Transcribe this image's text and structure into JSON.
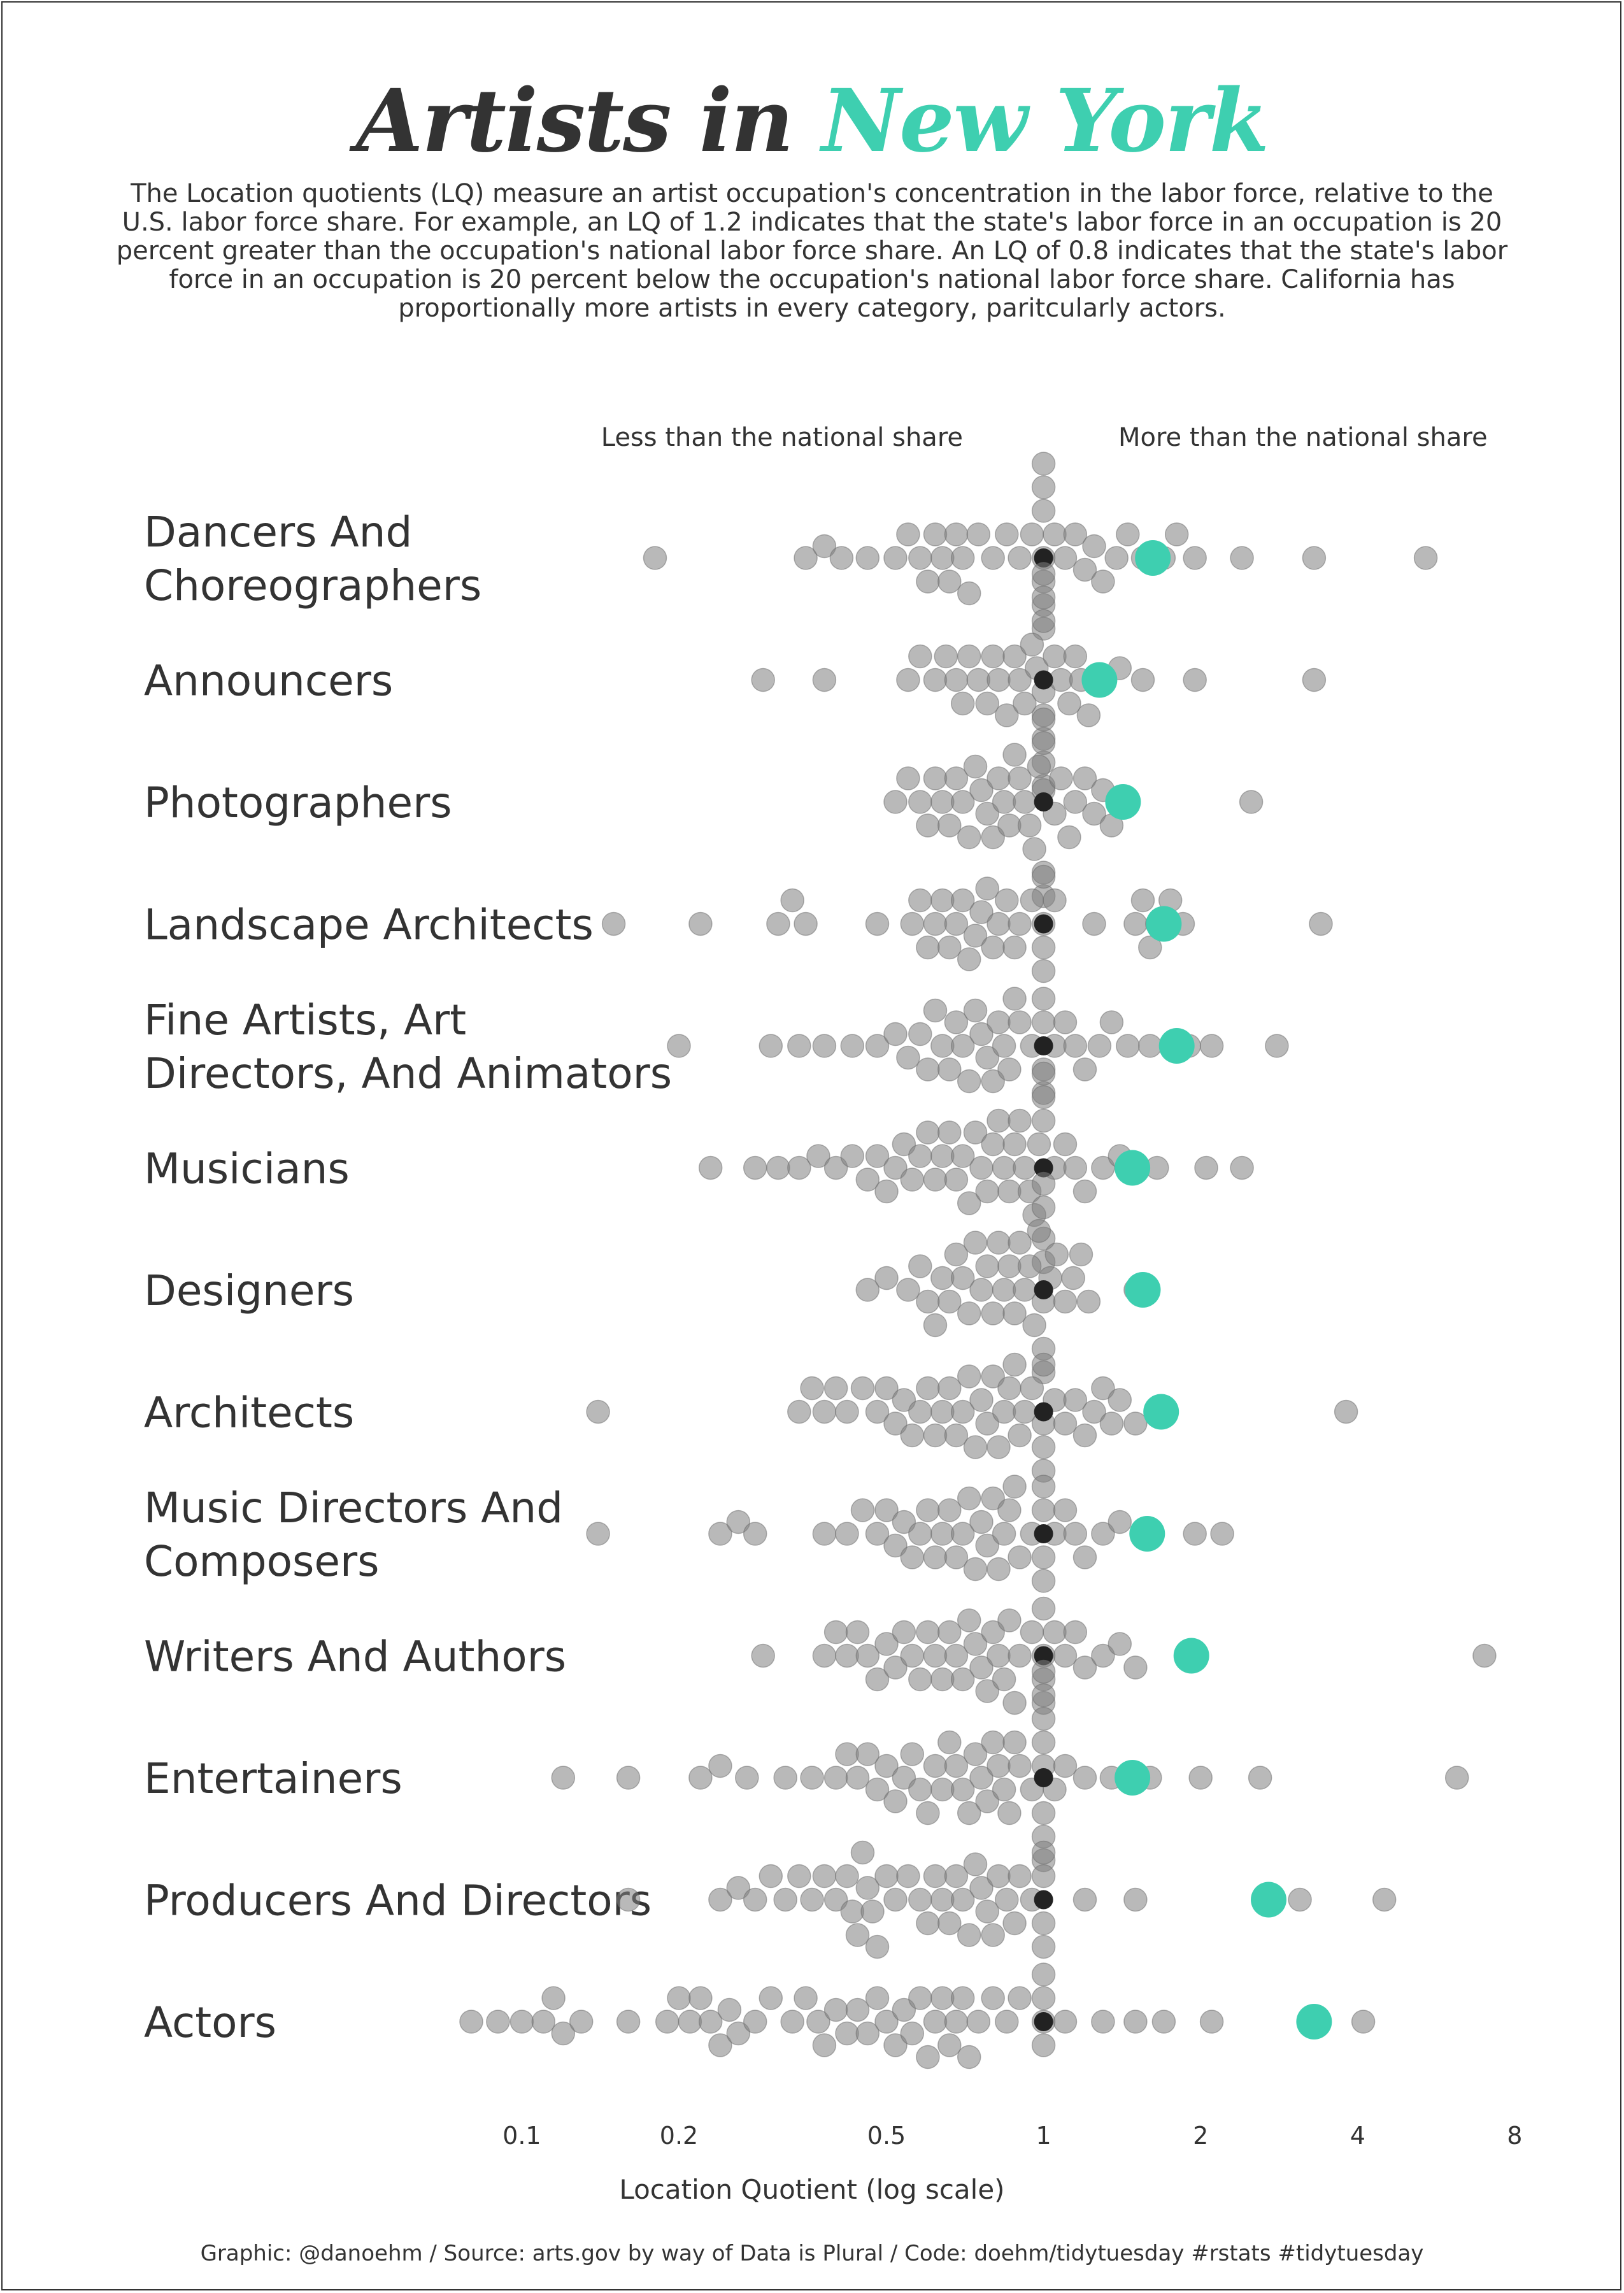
{
  "header": {
    "title_prefix": "Artists in ",
    "title_accent": "New York",
    "subtitle": "The Location quotients (LQ) measure an artist occupation's concentration in the labor force, relative to the U.S. labor force share. For example, an LQ of 1.2 indicates that the state's labor force in an occupation is 20 percent greater than the occupation's national labor force share. An LQ of 0.8 indicates that the state's labor force in an occupation is 20 percent below the occupation's national labor force share. California has proportionally more artists in every category, paritcularly actors."
  },
  "colors": {
    "text": "#333333",
    "accent": "#3ecfb0",
    "other_states": "#7f7f7f",
    "national": "#222222"
  },
  "caption": "Graphic: @danoehm / Source: arts.gov by way of Data is Plural / Code: doehm/tidytuesday #rstats #tidytuesday",
  "chart_data": {
    "type": "scatter",
    "subtype": "beeswarm",
    "x_scale": "log",
    "xlabel": "Location Quotient (log scale)",
    "xlim": [
      0.08,
      8.5
    ],
    "x_ticks": [
      {
        "value": 0.1,
        "label": "0.1"
      },
      {
        "value": 0.2,
        "label": "0.2"
      },
      {
        "value": 0.5,
        "label": "0.5"
      },
      {
        "value": 1,
        "label": "1"
      },
      {
        "value": 2,
        "label": "2"
      },
      {
        "value": 4,
        "label": "4"
      },
      {
        "value": 8,
        "label": "8"
      }
    ],
    "direction_labels": {
      "left": "Less than the national share",
      "right": "More than the national share"
    },
    "reference_value": 1,
    "categories": [
      {
        "label": [
          "Dancers And",
          "Choreographers"
        ],
        "highlight": 1.62,
        "values": [
          0.18,
          0.35,
          0.38,
          0.41,
          0.46,
          0.52,
          0.55,
          0.58,
          0.6,
          0.62,
          0.64,
          0.66,
          0.68,
          0.7,
          0.72,
          0.75,
          0.8,
          0.85,
          0.9,
          0.95,
          1.0,
          1.0,
          1.0,
          1.0,
          1.0,
          1.0,
          1.0,
          1.05,
          1.1,
          1.15,
          1.2,
          1.25,
          1.3,
          1.38,
          1.45,
          1.55,
          1.7,
          1.8,
          1.95,
          2.4,
          3.3,
          5.4
        ]
      },
      {
        "label": [
          "Announcers"
        ],
        "highlight": 1.28,
        "values": [
          0.29,
          0.38,
          0.55,
          0.58,
          0.62,
          0.65,
          0.68,
          0.7,
          0.72,
          0.75,
          0.78,
          0.8,
          0.82,
          0.85,
          0.88,
          0.9,
          0.92,
          0.95,
          0.97,
          1.0,
          1.0,
          1.0,
          1.0,
          1.0,
          1.0,
          1.0,
          1.0,
          1.05,
          1.08,
          1.12,
          1.15,
          1.18,
          1.22,
          1.3,
          1.4,
          1.55,
          1.95,
          3.3
        ]
      },
      {
        "label": [
          "Photographers"
        ],
        "highlight": 1.42,
        "values": [
          0.52,
          0.55,
          0.58,
          0.6,
          0.62,
          0.64,
          0.66,
          0.68,
          0.7,
          0.72,
          0.74,
          0.76,
          0.78,
          0.8,
          0.82,
          0.84,
          0.86,
          0.88,
          0.9,
          0.92,
          0.94,
          0.96,
          0.98,
          1.0,
          1.0,
          1.0,
          1.0,
          1.0,
          1.05,
          1.08,
          1.12,
          1.15,
          1.2,
          1.25,
          1.3,
          1.35,
          1.45,
          2.5
        ]
      },
      {
        "label": [
          "Landscape Architects"
        ],
        "highlight": 1.7,
        "values": [
          0.15,
          0.22,
          0.31,
          0.33,
          0.35,
          0.48,
          0.56,
          0.58,
          0.6,
          0.62,
          0.64,
          0.66,
          0.68,
          0.7,
          0.72,
          0.74,
          0.76,
          0.78,
          0.8,
          0.82,
          0.85,
          0.88,
          0.9,
          0.95,
          1.0,
          1.0,
          1.0,
          1.0,
          1.05,
          1.25,
          1.5,
          1.55,
          1.6,
          1.65,
          1.75,
          1.85,
          3.4
        ]
      },
      {
        "label": [
          "Fine Artists, Art",
          "Directors, And Animators"
        ],
        "highlight": 1.8,
        "values": [
          0.2,
          0.3,
          0.34,
          0.38,
          0.43,
          0.48,
          0.52,
          0.55,
          0.58,
          0.6,
          0.62,
          0.64,
          0.66,
          0.68,
          0.7,
          0.72,
          0.74,
          0.76,
          0.78,
          0.8,
          0.82,
          0.84,
          0.86,
          0.88,
          0.9,
          0.95,
          1.0,
          1.0,
          1.0,
          1.0,
          1.05,
          1.1,
          1.15,
          1.2,
          1.28,
          1.35,
          1.45,
          1.6,
          1.9,
          2.1,
          2.8
        ]
      },
      {
        "label": [
          "Musicians"
        ],
        "highlight": 1.48,
        "values": [
          0.23,
          0.28,
          0.31,
          0.34,
          0.37,
          0.4,
          0.43,
          0.46,
          0.48,
          0.5,
          0.52,
          0.54,
          0.56,
          0.58,
          0.6,
          0.62,
          0.64,
          0.66,
          0.68,
          0.7,
          0.72,
          0.74,
          0.76,
          0.78,
          0.8,
          0.82,
          0.84,
          0.86,
          0.88,
          0.9,
          0.92,
          0.94,
          0.96,
          0.98,
          1.0,
          1.0,
          1.0,
          1.0,
          1.0,
          1.05,
          1.1,
          1.15,
          1.2,
          1.3,
          1.4,
          1.65,
          2.05,
          2.4
        ]
      },
      {
        "label": [
          "Designers"
        ],
        "highlight": 1.55,
        "values": [
          0.46,
          0.5,
          0.55,
          0.58,
          0.6,
          0.62,
          0.64,
          0.66,
          0.68,
          0.7,
          0.72,
          0.74,
          0.76,
          0.78,
          0.8,
          0.82,
          0.84,
          0.86,
          0.88,
          0.9,
          0.92,
          0.94,
          0.96,
          0.98,
          1.0,
          1.0,
          1.0,
          1.0,
          1.0,
          1.03,
          1.06,
          1.1,
          1.14,
          1.18,
          1.22,
          1.5
        ]
      },
      {
        "label": [
          "Architects"
        ],
        "highlight": 1.68,
        "values": [
          0.14,
          0.34,
          0.36,
          0.38,
          0.4,
          0.42,
          0.45,
          0.48,
          0.5,
          0.52,
          0.54,
          0.56,
          0.58,
          0.6,
          0.62,
          0.64,
          0.66,
          0.68,
          0.7,
          0.72,
          0.74,
          0.76,
          0.78,
          0.8,
          0.82,
          0.84,
          0.86,
          0.88,
          0.9,
          0.92,
          0.95,
          1.0,
          1.0,
          1.0,
          1.0,
          1.05,
          1.1,
          1.15,
          1.2,
          1.25,
          1.3,
          1.35,
          1.4,
          1.5,
          1.65,
          3.8
        ]
      },
      {
        "label": [
          "Music Directors And",
          "Composers"
        ],
        "highlight": 1.58,
        "values": [
          0.14,
          0.24,
          0.26,
          0.28,
          0.38,
          0.42,
          0.45,
          0.48,
          0.5,
          0.52,
          0.54,
          0.56,
          0.58,
          0.6,
          0.62,
          0.64,
          0.66,
          0.68,
          0.7,
          0.72,
          0.74,
          0.76,
          0.78,
          0.8,
          0.82,
          0.84,
          0.86,
          0.88,
          0.9,
          0.95,
          1.0,
          1.0,
          1.0,
          1.0,
          1.05,
          1.1,
          1.15,
          1.2,
          1.3,
          1.4,
          1.55,
          1.95,
          2.2
        ]
      },
      {
        "label": [
          "Writers And Authors"
        ],
        "highlight": 1.92,
        "values": [
          0.29,
          0.38,
          0.4,
          0.42,
          0.44,
          0.46,
          0.48,
          0.5,
          0.52,
          0.54,
          0.56,
          0.58,
          0.6,
          0.62,
          0.64,
          0.66,
          0.68,
          0.7,
          0.72,
          0.74,
          0.76,
          0.78,
          0.8,
          0.82,
          0.84,
          0.86,
          0.88,
          0.9,
          0.95,
          1.0,
          1.0,
          1.0,
          1.0,
          1.05,
          1.1,
          1.15,
          1.2,
          1.3,
          1.4,
          1.5,
          1.95,
          7.0
        ]
      },
      {
        "label": [
          "Entertainers"
        ],
        "highlight": 1.48,
        "values": [
          0.12,
          0.16,
          0.22,
          0.24,
          0.27,
          0.32,
          0.36,
          0.4,
          0.42,
          0.44,
          0.46,
          0.48,
          0.5,
          0.52,
          0.54,
          0.56,
          0.58,
          0.6,
          0.62,
          0.64,
          0.66,
          0.68,
          0.7,
          0.72,
          0.74,
          0.76,
          0.78,
          0.8,
          0.82,
          0.84,
          0.86,
          0.88,
          0.9,
          0.95,
          1.0,
          1.0,
          1.0,
          1.0,
          1.0,
          1.0,
          1.0,
          1.0,
          1.05,
          1.1,
          1.2,
          1.35,
          1.6,
          2.0,
          2.6,
          6.2
        ]
      },
      {
        "label": [
          "Producers And Directors"
        ],
        "highlight": 2.7,
        "values": [
          0.16,
          0.24,
          0.26,
          0.28,
          0.3,
          0.32,
          0.34,
          0.36,
          0.38,
          0.4,
          0.42,
          0.43,
          0.44,
          0.45,
          0.46,
          0.47,
          0.48,
          0.5,
          0.52,
          0.55,
          0.58,
          0.6,
          0.62,
          0.64,
          0.66,
          0.68,
          0.7,
          0.72,
          0.74,
          0.76,
          0.78,
          0.8,
          0.82,
          0.85,
          0.88,
          0.9,
          0.95,
          1.0,
          1.0,
          1.0,
          1.0,
          1.2,
          1.5,
          3.1,
          4.5
        ]
      },
      {
        "label": [
          "Actors"
        ],
        "highlight": 3.3,
        "values": [
          0.08,
          0.09,
          0.1,
          0.11,
          0.115,
          0.12,
          0.13,
          0.16,
          0.19,
          0.2,
          0.21,
          0.22,
          0.23,
          0.24,
          0.25,
          0.26,
          0.28,
          0.3,
          0.33,
          0.35,
          0.37,
          0.38,
          0.4,
          0.42,
          0.44,
          0.46,
          0.48,
          0.5,
          0.52,
          0.54,
          0.56,
          0.58,
          0.6,
          0.62,
          0.64,
          0.66,
          0.68,
          0.7,
          0.72,
          0.75,
          0.8,
          0.85,
          0.9,
          1.0,
          1.0,
          1.0,
          1.0,
          1.1,
          1.3,
          1.5,
          1.7,
          2.1,
          4.1
        ]
      }
    ]
  }
}
